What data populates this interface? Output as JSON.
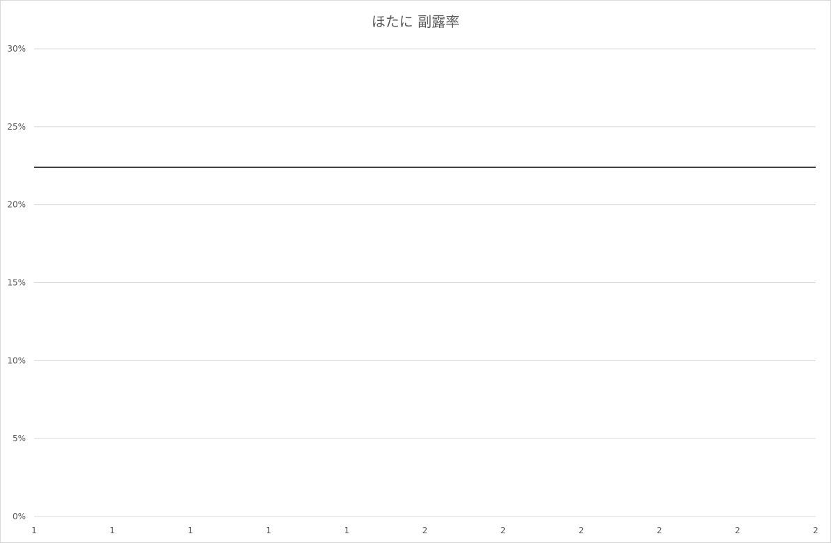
{
  "chart_data": {
    "type": "line",
    "title": "ほたに 副露率",
    "xlabel": "",
    "ylabel": "",
    "x_tick_labels": [
      "1",
      "1",
      "1",
      "1",
      "1",
      "2",
      "2",
      "2",
      "2",
      "2",
      "2"
    ],
    "y_tick_labels": [
      "0%",
      "5%",
      "10%",
      "15%",
      "20%",
      "25%",
      "30%"
    ],
    "y_tick_values": [
      0,
      0.05,
      0.1,
      0.15,
      0.2,
      0.25,
      0.3
    ],
    "ylim": [
      0,
      0.3
    ],
    "grid": true,
    "legend": "none",
    "series": [
      {
        "color": "#404040",
        "values": [
          0.224,
          0.224,
          0.224,
          0.224,
          0.224,
          0.224,
          0.224,
          0.224,
          0.224,
          0.224,
          0.224
        ]
      }
    ]
  }
}
